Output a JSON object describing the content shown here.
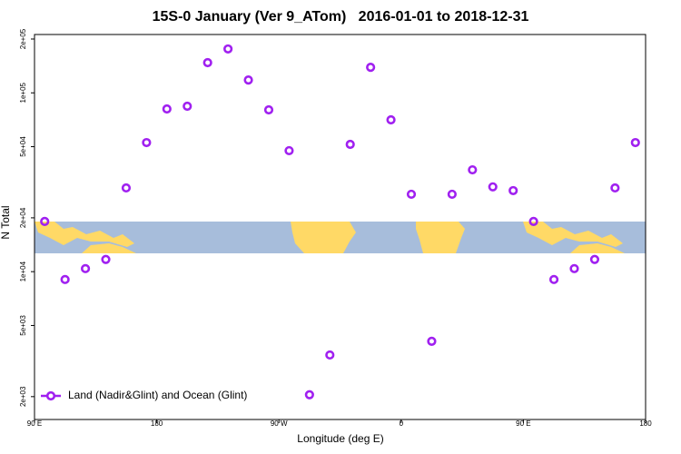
{
  "chart_data": {
    "type": "scatter",
    "title": "15S-0 January (Ver 9_ATom)   2016-01-01 to 2018-12-31",
    "x_label": "Longitude (deg E)",
    "y_label": "N Total",
    "log_y": true,
    "xlim": [
      90,
      540
    ],
    "xticks": [
      {
        "value": 90,
        "label": "90 E"
      },
      {
        "value": 180,
        "label": "180"
      },
      {
        "value": 270,
        "label": "90 W"
      },
      {
        "value": 360,
        "label": "0"
      },
      {
        "value": 450,
        "label": "90 E"
      },
      {
        "value": 540,
        "label": "180"
      }
    ],
    "ylim": [
      1490,
      212000
    ],
    "yticks": [
      {
        "value": 2000,
        "label": "2e+03"
      },
      {
        "value": 5000,
        "label": "5e+03"
      },
      {
        "value": 10000,
        "label": "1e+04"
      },
      {
        "value": 20000,
        "label": "2e+04"
      },
      {
        "value": 50000,
        "label": "5e+04"
      },
      {
        "value": 100000,
        "label": "1e+05"
      },
      {
        "value": 200000,
        "label": "2e+05"
      }
    ],
    "legend": "bottom-left",
    "series": [
      {
        "name": "Land (Nadir&Glint) and Ocean (Glint)",
        "color": "#a020f0",
        "x": [
          97.5,
          112.5,
          127.5,
          142.5,
          157.5,
          172.5,
          187.5,
          202.5,
          217.5,
          232.5,
          247.5,
          262.5,
          277.5,
          292.5,
          307.5,
          322.5,
          337.5,
          352.5,
          367.5,
          382.5,
          397.5,
          412.5,
          427.5,
          442.5,
          457.5,
          472.5,
          487.5,
          502.5,
          517.5,
          532.5
        ],
        "values": [
          19100,
          9040,
          10400,
          11700,
          29400,
          52700,
          81300,
          84200,
          147500,
          176000,
          118000,
          80300,
          47500,
          2050,
          3420,
          51500,
          139000,
          70600,
          27100,
          4080,
          27100,
          37100,
          29800,
          28400,
          19100,
          9040,
          10400,
          11700,
          29400,
          52700
        ]
      }
    ]
  }
}
